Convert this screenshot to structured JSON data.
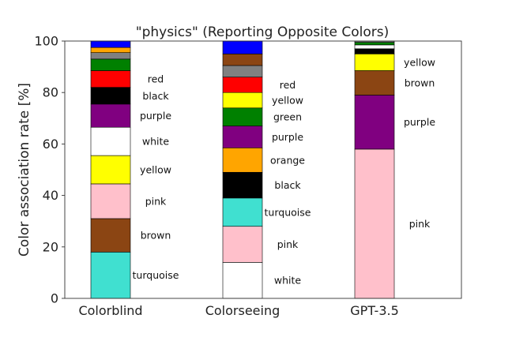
{
  "chart_data": {
    "type": "bar",
    "stacked": true,
    "title": "\"physics\" (Reporting Opposite Colors)",
    "xlabel": "",
    "ylabel": "Color association rate [%]",
    "ylim": [
      0,
      100
    ],
    "yticks": [
      0,
      20,
      40,
      60,
      80,
      100
    ],
    "grid": false,
    "categories": [
      "Colorblind",
      "Colorseeing",
      "GPT-3.5"
    ],
    "color_map": {
      "turquoise": "#40E0D0",
      "brown": "#8B4513",
      "pink": "#FFC0CB",
      "yellow": "#FFFF00",
      "white": "#FFFFFF",
      "purple": "#800080",
      "black": "#000000",
      "red": "#FF0000",
      "green": "#008000",
      "gray": "#808080",
      "orange": "#FFA500",
      "blue": "#0000FF"
    },
    "bars": [
      {
        "category": "Colorblind",
        "segments": [
          {
            "color": "turquoise",
            "value": 18,
            "label": "turquoise"
          },
          {
            "color": "brown",
            "value": 13,
            "label": "brown"
          },
          {
            "color": "pink",
            "value": 13.5,
            "label": "pink"
          },
          {
            "color": "yellow",
            "value": 11,
            "label": "yellow"
          },
          {
            "color": "white",
            "value": 11,
            "label": "white"
          },
          {
            "color": "purple",
            "value": 9,
            "label": "purple"
          },
          {
            "color": "black",
            "value": 6.5,
            "label": "black"
          },
          {
            "color": "red",
            "value": 6.5,
            "label": "red"
          },
          {
            "color": "green",
            "value": 4.5,
            "label": ""
          },
          {
            "color": "gray",
            "value": 2.5,
            "label": ""
          },
          {
            "color": "orange",
            "value": 2,
            "label": ""
          },
          {
            "color": "blue",
            "value": 2.5,
            "label": ""
          }
        ]
      },
      {
        "category": "Colorseeing",
        "segments": [
          {
            "color": "white",
            "value": 14,
            "label": "white"
          },
          {
            "color": "pink",
            "value": 14,
            "label": "pink"
          },
          {
            "color": "turquoise",
            "value": 11,
            "label": "turquoise"
          },
          {
            "color": "black",
            "value": 10,
            "label": "black"
          },
          {
            "color": "orange",
            "value": 9.5,
            "label": "orange"
          },
          {
            "color": "purple",
            "value": 8.5,
            "label": "purple"
          },
          {
            "color": "green",
            "value": 7,
            "label": "green"
          },
          {
            "color": "yellow",
            "value": 6,
            "label": "yellow"
          },
          {
            "color": "red",
            "value": 6,
            "label": "red"
          },
          {
            "color": "gray",
            "value": 4.5,
            "label": ""
          },
          {
            "color": "brown",
            "value": 4.5,
            "label": ""
          },
          {
            "color": "blue",
            "value": 5,
            "label": ""
          }
        ]
      },
      {
        "category": "GPT-3.5",
        "segments": [
          {
            "color": "pink",
            "value": 58,
            "label": "pink"
          },
          {
            "color": "purple",
            "value": 21,
            "label": "purple"
          },
          {
            "color": "brown",
            "value": 9.5,
            "label": "brown"
          },
          {
            "color": "yellow",
            "value": 6.5,
            "label": "yellow"
          },
          {
            "color": "black",
            "value": 2,
            "label": ""
          },
          {
            "color": "white",
            "value": 1.5,
            "label": ""
          },
          {
            "color": "green",
            "value": 1,
            "label": ""
          },
          {
            "color": "gray",
            "value": 0.5,
            "label": ""
          }
        ]
      }
    ]
  }
}
